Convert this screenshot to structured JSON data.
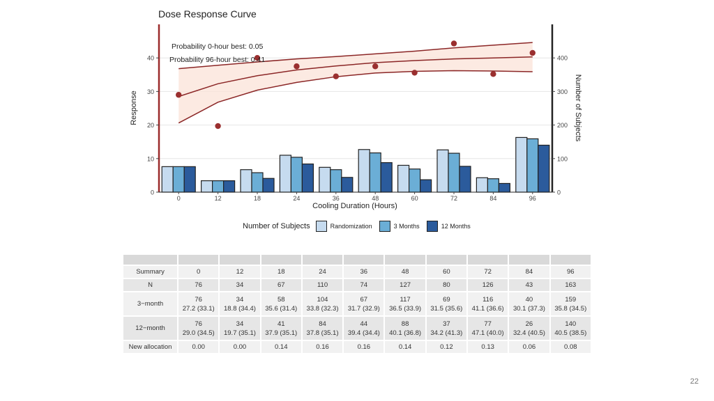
{
  "chart_data": {
    "type": "bar+line+scatter",
    "title": "Dose Response Curve",
    "xlabel": "Cooling Duration (Hours)",
    "ylabel_left": "Response",
    "ylabel_right": "Number of Subjects",
    "categories": [
      "0",
      "12",
      "18",
      "24",
      "36",
      "48",
      "60",
      "72",
      "84",
      "96"
    ],
    "ylim_left": [
      0,
      50
    ],
    "yticks_left": [
      0,
      10,
      20,
      30,
      40
    ],
    "ylim_right": [
      0,
      500
    ],
    "yticks_right": [
      0,
      100,
      200,
      300,
      400
    ],
    "annotations": [
      "Probability 0-hour best: 0.05",
      "Probability 96-hour best: 0.41"
    ],
    "points": [
      29,
      19.7,
      40,
      37.5,
      34.5,
      37.5,
      35.6,
      44.3,
      35.2,
      41.5
    ],
    "curve_mean": [
      28.5,
      32.3,
      34.7,
      36.4,
      37.6,
      38.6,
      39.2,
      39.7,
      40.0,
      40.3
    ],
    "curve_upper": [
      36.8,
      37.8,
      38.8,
      39.7,
      40.4,
      41.2,
      42.0,
      43.0,
      43.8,
      44.6
    ],
    "curve_lower": [
      20.6,
      26.8,
      30.4,
      32.7,
      34.4,
      35.5,
      36.0,
      36.2,
      36.1,
      35.9
    ],
    "bar_series": [
      {
        "name": "Randomization",
        "color": "#c6dbef",
        "values": [
          76,
          34,
          67,
          110,
          74,
          127,
          80,
          126,
          43,
          163
        ]
      },
      {
        "name": "3 Months",
        "color": "#6baed6",
        "values": [
          76,
          34,
          58,
          104,
          67,
          117,
          69,
          116,
          40,
          159
        ]
      },
      {
        "name": "12 Months",
        "color": "#2b5b9c",
        "values": [
          76,
          34,
          41,
          84,
          44,
          88,
          37,
          77,
          26,
          140
        ]
      }
    ],
    "legend_title": "Number of Subjects",
    "colors": {
      "curve": "#8b2626",
      "band": "#fbe3d8",
      "axis_left": "#9b2a2a",
      "grid": "#e6e6e6"
    }
  },
  "table": {
    "header_label": "Summary",
    "columns": [
      "0",
      "12",
      "18",
      "24",
      "36",
      "48",
      "60",
      "72",
      "84",
      "96"
    ],
    "rows": [
      {
        "label": "N",
        "cells": [
          "76",
          "34",
          "67",
          "110",
          "74",
          "127",
          "80",
          "126",
          "43",
          "163"
        ]
      },
      {
        "label": "3−month",
        "top": [
          "76",
          "34",
          "58",
          "104",
          "67",
          "117",
          "69",
          "116",
          "40",
          "159"
        ],
        "bottom": [
          "27.2 (33.1)",
          "18.8 (34.4)",
          "35.6 (31.4)",
          "33.8 (32.3)",
          "31.7 (32.9)",
          "36.5 (33.9)",
          "31.5 (35.6)",
          "41.1 (36.6)",
          "30.1 (37.3)",
          "35.8 (34.5)"
        ]
      },
      {
        "label": "12−month",
        "top": [
          "76",
          "34",
          "41",
          "84",
          "44",
          "88",
          "37",
          "77",
          "26",
          "140"
        ],
        "bottom": [
          "29.0 (34.5)",
          "19.7 (35.1)",
          "37.9 (35.1)",
          "37.8 (35.1)",
          "39.4 (34.4)",
          "40.1 (36.8)",
          "34.2 (41.3)",
          "47.1 (40.0)",
          "32.4 (40.5)",
          "40.5 (38.5)"
        ]
      },
      {
        "label": "New allocation",
        "cells": [
          "0.00",
          "0.00",
          "0.14",
          "0.16",
          "0.16",
          "0.14",
          "0.12",
          "0.13",
          "0.06",
          "0.08"
        ]
      }
    ]
  },
  "page_number": "22"
}
